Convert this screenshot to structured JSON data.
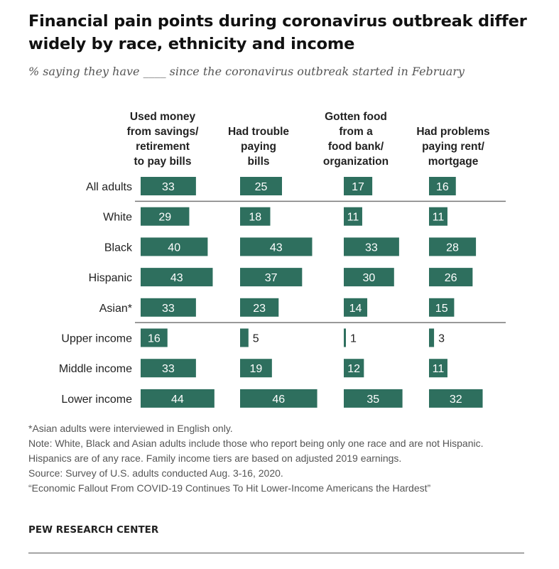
{
  "title": "Financial pain points during coronavirus outbreak differ widely by race, ethnicity and income",
  "subtitle": "% saying they have ____ since the coronavirus outbreak started in February",
  "colors": {
    "bar": "#2e6f5e",
    "bar_label": "#ffffff",
    "outside_label": "#222222",
    "divider": "#777777"
  },
  "chart_data": {
    "type": "bar",
    "orientation": "horizontal",
    "layout": "small-multiples",
    "categories": [
      "All adults",
      "White",
      "Black",
      "Hispanic",
      "Asian*",
      "Upper income",
      "Middle income",
      "Lower income"
    ],
    "series": [
      {
        "name": "Used money from savings/ retirement to pay bills",
        "header_lines": [
          "Used money",
          "from savings/",
          "retirement",
          "to pay bills"
        ],
        "values": [
          33,
          29,
          40,
          43,
          33,
          16,
          33,
          44
        ]
      },
      {
        "name": "Had trouble paying bills",
        "header_lines": [
          "Had trouble",
          "paying",
          "bills"
        ],
        "values": [
          25,
          18,
          43,
          37,
          23,
          5,
          19,
          46
        ]
      },
      {
        "name": "Gotten food from a food bank/ organization",
        "header_lines": [
          "Gotten food",
          "from a",
          "food bank/",
          "organization"
        ],
        "values": [
          17,
          11,
          33,
          30,
          14,
          1,
          12,
          35
        ]
      },
      {
        "name": "Had problems paying rent/ mortgage",
        "header_lines": [
          "Had problems",
          "paying rent/",
          "mortgage"
        ],
        "values": [
          16,
          11,
          28,
          26,
          15,
          3,
          11,
          32
        ]
      }
    ],
    "dividers_after_category": [
      0,
      4
    ]
  },
  "notes": {
    "asian": "*Asian adults were interviewed in English only.",
    "note": "Note: White, Black and Asian adults include those who report being only one race and are not Hispanic. Hispanics are of any race. Family income tiers are based on adjusted 2019 earnings.",
    "source": "Source: Survey of U.S. adults conducted Aug. 3-16, 2020.",
    "report": "“Economic Fallout From COVID-19 Continues To Hit Lower-Income Americans the Hardest”"
  },
  "brand": "PEW RESEARCH CENTER"
}
